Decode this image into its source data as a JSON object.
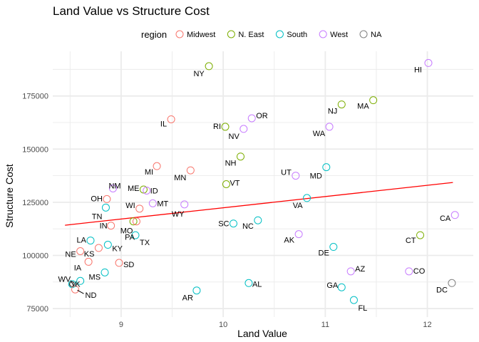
{
  "chart_data": {
    "type": "scatter",
    "title": "Land Value vs Structure Cost",
    "xlabel": "Land Value",
    "ylabel": "Structure Cost",
    "xlim": [
      8.33,
      12.45
    ],
    "ylim": [
      71000,
      196000
    ],
    "x_ticks": [
      9,
      10,
      11,
      12
    ],
    "x_tick_labels": [
      "9",
      "10",
      "11",
      "12"
    ],
    "y_ticks": [
      75000,
      100000,
      125000,
      150000,
      175000
    ],
    "y_tick_labels": [
      "75000",
      "100000",
      "125000",
      "150000",
      "175000"
    ],
    "grid": true,
    "legend": {
      "title": "region",
      "position": "top",
      "entries": [
        {
          "label": "Midwest",
          "color": "#F8766D"
        },
        {
          "label": "N. East",
          "color": "#7CAE00"
        },
        {
          "label": "South",
          "color": "#00BFC4"
        },
        {
          "label": "West",
          "color": "#C77CFF"
        },
        {
          "label": "NA",
          "color": "#7F7F7F"
        }
      ]
    },
    "trend_line": {
      "color": "#FF0000",
      "x": [
        8.45,
        12.25
      ],
      "y": [
        114200,
        134300
      ]
    },
    "points": [
      {
        "label": "NY",
        "x": 9.86,
        "y": 189000,
        "region": "N. East"
      },
      {
        "label": "HI",
        "x": 12.01,
        "y": 190500,
        "region": "West"
      },
      {
        "label": "MA",
        "x": 11.47,
        "y": 173000,
        "region": "N. East"
      },
      {
        "label": "NJ",
        "x": 11.16,
        "y": 171000,
        "region": "N. East"
      },
      {
        "label": "IL",
        "x": 9.49,
        "y": 164000,
        "region": "Midwest"
      },
      {
        "label": "OR",
        "x": 10.28,
        "y": 164500,
        "region": "West"
      },
      {
        "label": "RI",
        "x": 10.02,
        "y": 160500,
        "region": "N. East"
      },
      {
        "label": "NV",
        "x": 10.2,
        "y": 159500,
        "region": "West"
      },
      {
        "label": "WA",
        "x": 11.04,
        "y": 160500,
        "region": "West"
      },
      {
        "label": "NH",
        "x": 10.17,
        "y": 146500,
        "region": "N. East"
      },
      {
        "label": "MI",
        "x": 9.35,
        "y": 142000,
        "region": "Midwest"
      },
      {
        "label": "MN",
        "x": 9.68,
        "y": 140000,
        "region": "Midwest"
      },
      {
        "label": "UT",
        "x": 10.71,
        "y": 137500,
        "region": "West"
      },
      {
        "label": "MD",
        "x": 11.01,
        "y": 141500,
        "region": "South"
      },
      {
        "label": "VT",
        "x": 10.03,
        "y": 133500,
        "region": "N. East"
      },
      {
        "label": "NM",
        "x": 8.92,
        "y": 131500,
        "region": "West"
      },
      {
        "label": "ME",
        "x": 9.22,
        "y": 131000,
        "region": "N. East"
      },
      {
        "label": "ID",
        "x": 9.25,
        "y": 130500,
        "region": "West"
      },
      {
        "label": "OH",
        "x": 8.86,
        "y": 126500,
        "region": "Midwest"
      },
      {
        "label": "MT",
        "x": 9.31,
        "y": 124500,
        "region": "West"
      },
      {
        "label": "VA",
        "x": 10.82,
        "y": 127000,
        "region": "South"
      },
      {
        "label": "WY",
        "x": 9.62,
        "y": 124000,
        "region": "West"
      },
      {
        "label": "WI",
        "x": 9.18,
        "y": 122000,
        "region": "Midwest"
      },
      {
        "label": "TN",
        "x": 8.85,
        "y": 122500,
        "region": "South"
      },
      {
        "label": "CA",
        "x": 12.27,
        "y": 119000,
        "region": "West"
      },
      {
        "label": "PA",
        "x": 9.12,
        "y": 116000,
        "region": "N. East"
      },
      {
        "label": "SC",
        "x": 10.1,
        "y": 115000,
        "region": "South"
      },
      {
        "label": "NC",
        "x": 10.34,
        "y": 116500,
        "region": "South"
      },
      {
        "label": "IN",
        "x": 8.9,
        "y": 114000,
        "region": "Midwest"
      },
      {
        "label": "MO",
        "x": 9.15,
        "y": 116000,
        "region": "Midwest"
      },
      {
        "label": "CT",
        "x": 11.93,
        "y": 109500,
        "region": "N. East"
      },
      {
        "label": "LA",
        "x": 8.7,
        "y": 107000,
        "region": "South"
      },
      {
        "label": "TX",
        "x": 9.14,
        "y": 109500,
        "region": "South"
      },
      {
        "label": "AK",
        "x": 10.74,
        "y": 110000,
        "region": "West"
      },
      {
        "label": "KY",
        "x": 8.87,
        "y": 105000,
        "region": "South"
      },
      {
        "label": "DE",
        "x": 11.08,
        "y": 104000,
        "region": "South"
      },
      {
        "label": "NE",
        "x": 8.6,
        "y": 102000,
        "region": "Midwest"
      },
      {
        "label": "KS",
        "x": 8.78,
        "y": 103500,
        "region": "Midwest"
      },
      {
        "label": "SD",
        "x": 8.98,
        "y": 96500,
        "region": "Midwest"
      },
      {
        "label": "IA",
        "x": 8.68,
        "y": 97000,
        "region": "Midwest"
      },
      {
        "label": "AZ",
        "x": 11.25,
        "y": 92500,
        "region": "West"
      },
      {
        "label": "CO",
        "x": 11.82,
        "y": 92500,
        "region": "West"
      },
      {
        "label": "MS",
        "x": 8.84,
        "y": 92000,
        "region": "South"
      },
      {
        "label": "AL",
        "x": 10.25,
        "y": 87000,
        "region": "South"
      },
      {
        "label": "GA",
        "x": 11.16,
        "y": 85000,
        "region": "South"
      },
      {
        "label": "DC",
        "x": 12.24,
        "y": 87000,
        "region": "NA"
      },
      {
        "label": "WV",
        "x": 8.52,
        "y": 86500,
        "region": "South"
      },
      {
        "label": "OK",
        "x": 8.6,
        "y": 88000,
        "region": "South"
      },
      {
        "label": "ND",
        "x": 8.55,
        "y": 84000,
        "region": "Midwest"
      },
      {
        "label": "AR",
        "x": 9.74,
        "y": 83500,
        "region": "South"
      },
      {
        "label": "FL",
        "x": 11.28,
        "y": 79000,
        "region": "South"
      }
    ]
  }
}
